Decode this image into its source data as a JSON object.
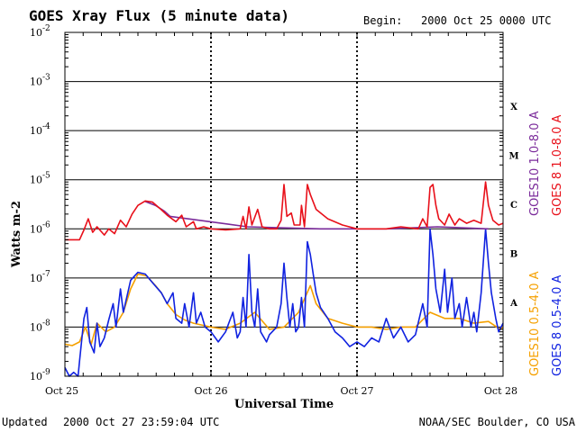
{
  "header": {
    "title": "GOES Xray Flux (5 minute data)",
    "begin_label": "Begin:",
    "begin_value": "2000 Oct 25 0000 UTC"
  },
  "footer": {
    "updated_label": "Updated",
    "updated_value": "2000 Oct 27 23:59:04 UTC",
    "source": "NOAA/SEC Boulder, CO USA"
  },
  "colors": {
    "goes8_long": "#e8101a",
    "goes10_long": "#7a2a9a",
    "goes8_short": "#1022e0",
    "goes10_short": "#f5a000",
    "grid": "#000000"
  },
  "chart_data": {
    "type": "line",
    "title": "GOES Xray Flux (5 minute data)",
    "xlabel": "Universal Time",
    "ylabel": "Watts m-2",
    "yscale": "log",
    "ylim": [
      1e-09,
      0.01
    ],
    "xlim": [
      0,
      3
    ],
    "x_unit": "days since 2000 Oct 25 0000 UTC",
    "x_ticks": [
      {
        "value": 0,
        "label": "Oct 25"
      },
      {
        "value": 1,
        "label": "Oct 26"
      },
      {
        "value": 2,
        "label": "Oct 27"
      },
      {
        "value": 3,
        "label": "Oct 28"
      }
    ],
    "y_ticks": [
      {
        "exp": -9,
        "base": "10",
        "sup": "-9"
      },
      {
        "exp": -8,
        "base": "10",
        "sup": "-8"
      },
      {
        "exp": -7,
        "base": "10",
        "sup": "-7"
      },
      {
        "exp": -6,
        "base": "10",
        "sup": "-6"
      },
      {
        "exp": -5,
        "base": "10",
        "sup": "-5"
      },
      {
        "exp": -4,
        "base": "10",
        "sup": "-4"
      },
      {
        "exp": -3,
        "base": "10",
        "sup": "-3"
      },
      {
        "exp": -2,
        "base": "10",
        "sup": "-2"
      }
    ],
    "flare_classes": [
      {
        "label": "A",
        "exp": -8
      },
      {
        "label": "B",
        "exp": -7
      },
      {
        "label": "C",
        "exp": -6
      },
      {
        "label": "M",
        "exp": -5
      },
      {
        "label": "X",
        "exp": -4
      }
    ],
    "legend": [
      {
        "name": "GOES10 1.0-8.0 A",
        "color": "#7a2a9a"
      },
      {
        "name": "GOES 8 1.0-8.0 A",
        "color": "#e8101a"
      },
      {
        "name": "GOES10 0.5-4.0 A",
        "color": "#f5a000"
      },
      {
        "name": "GOES 8 0.5-4.0 A",
        "color": "#1022e0"
      }
    ],
    "series": [
      {
        "name": "GOES10 1.0-8.0 A",
        "color": "#7a2a9a",
        "points": [
          [
            0.55,
            3.6e-06
          ],
          [
            0.62,
            3e-06
          ],
          [
            0.68,
            2.3e-06
          ],
          [
            0.72,
            1.8e-06
          ],
          [
            1.25,
            1.1e-06
          ],
          [
            1.75,
            1e-06
          ],
          [
            2.2,
            1e-06
          ],
          [
            2.55,
            1.1e-06
          ],
          [
            2.9,
            1e-06
          ]
        ]
      },
      {
        "name": "GOES 8 1.0-8.0 A",
        "color": "#e8101a",
        "points": [
          [
            0.0,
            6e-07
          ],
          [
            0.1,
            6e-07
          ],
          [
            0.13,
            9.5e-07
          ],
          [
            0.16,
            1.6e-06
          ],
          [
            0.19,
            8.5e-07
          ],
          [
            0.22,
            1.1e-06
          ],
          [
            0.27,
            7.5e-07
          ],
          [
            0.3,
            1e-06
          ],
          [
            0.34,
            8e-07
          ],
          [
            0.38,
            1.5e-06
          ],
          [
            0.42,
            1.1e-06
          ],
          [
            0.46,
            2e-06
          ],
          [
            0.5,
            3e-06
          ],
          [
            0.55,
            3.7e-06
          ],
          [
            0.6,
            3.5e-06
          ],
          [
            0.65,
            2.6e-06
          ],
          [
            0.7,
            1.9e-06
          ],
          [
            0.76,
            1.4e-06
          ],
          [
            0.8,
            1.9e-06
          ],
          [
            0.83,
            1.1e-06
          ],
          [
            0.88,
            1.4e-06
          ],
          [
            0.9,
            1e-06
          ],
          [
            0.95,
            1.1e-06
          ],
          [
            1.0,
            1e-06
          ],
          [
            1.1,
            9.5e-07
          ],
          [
            1.2,
            1e-06
          ],
          [
            1.22,
            1.8e-06
          ],
          [
            1.24,
            1e-06
          ],
          [
            1.26,
            2.8e-06
          ],
          [
            1.28,
            1.2e-06
          ],
          [
            1.32,
            2.5e-06
          ],
          [
            1.35,
            1.1e-06
          ],
          [
            1.4,
            1e-06
          ],
          [
            1.45,
            1e-06
          ],
          [
            1.48,
            1.5e-06
          ],
          [
            1.5,
            8e-06
          ],
          [
            1.52,
            1.8e-06
          ],
          [
            1.55,
            2.1e-06
          ],
          [
            1.57,
            1.2e-06
          ],
          [
            1.61,
            1.2e-06
          ],
          [
            1.62,
            3e-06
          ],
          [
            1.64,
            1.1e-06
          ],
          [
            1.66,
            8e-06
          ],
          [
            1.68,
            5e-06
          ],
          [
            1.72,
            2.5e-06
          ],
          [
            1.8,
            1.6e-06
          ],
          [
            1.9,
            1.2e-06
          ],
          [
            2.0,
            1e-06
          ],
          [
            2.1,
            1e-06
          ],
          [
            2.2,
            1e-06
          ],
          [
            2.3,
            1.1e-06
          ],
          [
            2.42,
            1e-06
          ],
          [
            2.45,
            1.6e-06
          ],
          [
            2.48,
            1.1e-06
          ],
          [
            2.5,
            7e-06
          ],
          [
            2.52,
            8e-06
          ],
          [
            2.54,
            3e-06
          ],
          [
            2.56,
            1.6e-06
          ],
          [
            2.6,
            1.2e-06
          ],
          [
            2.63,
            2e-06
          ],
          [
            2.67,
            1.2e-06
          ],
          [
            2.7,
            1.6e-06
          ],
          [
            2.75,
            1.3e-06
          ],
          [
            2.8,
            1.5e-06
          ],
          [
            2.85,
            1.3e-06
          ],
          [
            2.88,
            9e-06
          ],
          [
            2.9,
            3e-06
          ],
          [
            2.93,
            1.5e-06
          ],
          [
            2.97,
            1.2e-06
          ],
          [
            3.0,
            1.3e-06
          ]
        ]
      },
      {
        "name": "GOES10 0.5-4.0 A",
        "color": "#f5a000",
        "points": [
          [
            0.0,
            4.5e-09
          ],
          [
            0.05,
            4.2e-09
          ],
          [
            0.1,
            5e-09
          ],
          [
            0.14,
            1e-08
          ],
          [
            0.18,
            4.5e-09
          ],
          [
            0.22,
            1.2e-08
          ],
          [
            0.28,
            8e-09
          ],
          [
            0.34,
            1e-08
          ],
          [
            0.4,
            2e-08
          ],
          [
            0.45,
            6e-08
          ],
          [
            0.5,
            1.2e-07
          ],
          [
            0.56,
            1.1e-07
          ],
          [
            0.62,
            7e-08
          ],
          [
            0.66,
            5e-08
          ],
          [
            0.7,
            3e-08
          ],
          [
            0.76,
            1.8e-08
          ],
          [
            0.82,
            1.4e-08
          ],
          [
            0.88,
            1.2e-08
          ],
          [
            1.0,
            1e-08
          ],
          [
            1.1,
            9e-09
          ],
          [
            1.2,
            1.2e-08
          ],
          [
            1.3,
            2e-08
          ],
          [
            1.4,
            9e-09
          ],
          [
            1.5,
            1e-08
          ],
          [
            1.6,
            2e-08
          ],
          [
            1.68,
            7e-08
          ],
          [
            1.72,
            3e-08
          ],
          [
            1.8,
            1.5e-08
          ],
          [
            1.9,
            1.2e-08
          ],
          [
            2.0,
            1e-08
          ],
          [
            2.1,
            1e-08
          ],
          [
            2.2,
            9e-09
          ],
          [
            2.3,
            1e-08
          ],
          [
            2.4,
            1e-08
          ],
          [
            2.5,
            2e-08
          ],
          [
            2.6,
            1.5e-08
          ],
          [
            2.7,
            1.5e-08
          ],
          [
            2.8,
            1.2e-08
          ],
          [
            2.9,
            1.3e-08
          ],
          [
            2.98,
            9e-09
          ],
          [
            3.0,
            1e-08
          ]
        ]
      },
      {
        "name": "GOES 8 0.5-4.0 A",
        "color": "#1022e0",
        "points": [
          [
            0.0,
            1.5e-09
          ],
          [
            0.03,
            1e-09
          ],
          [
            0.06,
            1.2e-09
          ],
          [
            0.09,
            1e-09
          ],
          [
            0.1,
            2e-09
          ],
          [
            0.13,
            1.5e-08
          ],
          [
            0.15,
            2.5e-08
          ],
          [
            0.17,
            5e-09
          ],
          [
            0.2,
            3e-09
          ],
          [
            0.22,
            1.2e-08
          ],
          [
            0.24,
            4e-09
          ],
          [
            0.27,
            6e-09
          ],
          [
            0.3,
            1.4e-08
          ],
          [
            0.33,
            3e-08
          ],
          [
            0.35,
            1e-08
          ],
          [
            0.38,
            6e-08
          ],
          [
            0.4,
            2e-08
          ],
          [
            0.45,
            9e-08
          ],
          [
            0.5,
            1.3e-07
          ],
          [
            0.55,
            1.2e-07
          ],
          [
            0.6,
            8e-08
          ],
          [
            0.66,
            5e-08
          ],
          [
            0.7,
            3e-08
          ],
          [
            0.74,
            5e-08
          ],
          [
            0.76,
            1.5e-08
          ],
          [
            0.8,
            1.2e-08
          ],
          [
            0.82,
            3e-08
          ],
          [
            0.85,
            1e-08
          ],
          [
            0.88,
            5e-08
          ],
          [
            0.9,
            1.2e-08
          ],
          [
            0.93,
            2e-08
          ],
          [
            0.96,
            1e-08
          ],
          [
            1.0,
            8e-09
          ],
          [
            1.05,
            5e-09
          ],
          [
            1.1,
            8e-09
          ],
          [
            1.15,
            2e-08
          ],
          [
            1.18,
            6e-09
          ],
          [
            1.2,
            8e-09
          ],
          [
            1.22,
            4e-08
          ],
          [
            1.24,
            1e-08
          ],
          [
            1.26,
            3e-07
          ],
          [
            1.28,
            2e-08
          ],
          [
            1.3,
            1e-08
          ],
          [
            1.32,
            6e-08
          ],
          [
            1.34,
            8e-09
          ],
          [
            1.38,
            5e-09
          ],
          [
            1.4,
            7e-09
          ],
          [
            1.45,
            1e-08
          ],
          [
            1.48,
            3e-08
          ],
          [
            1.5,
            2e-07
          ],
          [
            1.52,
            4e-08
          ],
          [
            1.54,
            1e-08
          ],
          [
            1.56,
            3e-08
          ],
          [
            1.58,
            8e-09
          ],
          [
            1.6,
            1e-08
          ],
          [
            1.62,
            4e-08
          ],
          [
            1.64,
            1e-08
          ],
          [
            1.66,
            5.5e-07
          ],
          [
            1.68,
            3e-07
          ],
          [
            1.7,
            1.2e-07
          ],
          [
            1.72,
            5e-08
          ],
          [
            1.75,
            2.5e-08
          ],
          [
            1.8,
            1.5e-08
          ],
          [
            1.85,
            8e-09
          ],
          [
            1.9,
            6e-09
          ],
          [
            1.95,
            4e-09
          ],
          [
            2.0,
            5e-09
          ],
          [
            2.05,
            4e-09
          ],
          [
            2.1,
            6e-09
          ],
          [
            2.15,
            5e-09
          ],
          [
            2.2,
            1.5e-08
          ],
          [
            2.25,
            6e-09
          ],
          [
            2.3,
            1e-08
          ],
          [
            2.35,
            5e-09
          ],
          [
            2.4,
            7e-09
          ],
          [
            2.45,
            3e-08
          ],
          [
            2.48,
            1e-08
          ],
          [
            2.5,
            1e-06
          ],
          [
            2.52,
            3e-07
          ],
          [
            2.54,
            6e-08
          ],
          [
            2.57,
            2e-08
          ],
          [
            2.6,
            1.5e-07
          ],
          [
            2.62,
            2e-08
          ],
          [
            2.65,
            1e-07
          ],
          [
            2.67,
            1.5e-08
          ],
          [
            2.7,
            3e-08
          ],
          [
            2.72,
            1e-08
          ],
          [
            2.75,
            4e-08
          ],
          [
            2.78,
            1e-08
          ],
          [
            2.8,
            2e-08
          ],
          [
            2.82,
            8e-09
          ],
          [
            2.85,
            5e-08
          ],
          [
            2.88,
            1e-06
          ],
          [
            2.9,
            2e-07
          ],
          [
            2.92,
            5e-08
          ],
          [
            2.95,
            1.5e-08
          ],
          [
            2.97,
            8e-09
          ],
          [
            3.0,
            1.2e-08
          ]
        ]
      }
    ]
  }
}
